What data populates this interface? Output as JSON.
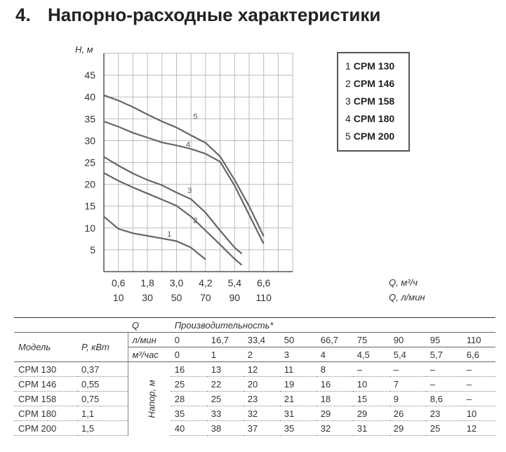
{
  "heading": {
    "number": "4.",
    "title": "Напорно-расходные характеристики"
  },
  "chart_data": {
    "type": "line",
    "ylabel": "Н, м",
    "xlabel": "Q, м³/ч",
    "xlabel2": "Q, л/мин",
    "yticks": [
      "5",
      "10",
      "15",
      "20",
      "25",
      "30",
      "35",
      "40",
      "45"
    ],
    "xticks_m3h": [
      "0,6",
      "1,8",
      "3,0",
      "4,2",
      "5,4",
      "6,6"
    ],
    "xticks_lmin": [
      "10",
      "30",
      "50",
      "70",
      "90",
      "110"
    ],
    "xlim_lmin": [
      0,
      130
    ],
    "ylim": [
      0,
      50
    ],
    "grid": true,
    "legend_position": "top-right",
    "legend": [
      {
        "num": "1",
        "name": "CPM 130"
      },
      {
        "num": "2",
        "name": "CPM 146"
      },
      {
        "num": "3",
        "name": "CPM 158"
      },
      {
        "num": "4",
        "name": "CPM 180"
      },
      {
        "num": "5",
        "name": "CPM 200"
      }
    ],
    "series": [
      {
        "label": "1",
        "x": [
          0,
          10,
          20,
          30,
          40,
          50,
          60,
          70
        ],
        "y": [
          12.6,
          9.8,
          8.8,
          8.2,
          7.6,
          7.0,
          5.5,
          2.8
        ],
        "label_at": [
          45,
          8
        ]
      },
      {
        "label": "2",
        "x": [
          0,
          10,
          20,
          30,
          40,
          50,
          60,
          70,
          80,
          90,
          95
        ],
        "y": [
          22.6,
          20.8,
          19.3,
          17.9,
          16.5,
          15.1,
          12.6,
          9.4,
          6.2,
          2.9,
          1.5
        ],
        "label_at": [
          63,
          11.2
        ]
      },
      {
        "label": "3",
        "x": [
          0,
          10,
          20,
          30,
          40,
          50,
          60,
          70,
          80,
          90,
          95
        ],
        "y": [
          26.3,
          24.3,
          22.5,
          21.0,
          19.8,
          18.1,
          16.6,
          13.5,
          9.4,
          5.5,
          4.1
        ],
        "label_at": [
          59,
          18
        ]
      },
      {
        "label": "4",
        "x": [
          0,
          10,
          20,
          30,
          40,
          50,
          60,
          70,
          80,
          90,
          100,
          110
        ],
        "y": [
          34.4,
          33.2,
          31.8,
          30.7,
          29.6,
          28.9,
          28.1,
          27.0,
          25.2,
          19.7,
          13.0,
          6.4
        ],
        "label_at": [
          58,
          28.5
        ]
      },
      {
        "label": "5",
        "x": [
          0,
          10,
          20,
          30,
          40,
          50,
          60,
          70,
          80,
          90,
          100,
          110
        ],
        "y": [
          40.4,
          39.2,
          37.7,
          36.0,
          34.4,
          33.0,
          31.2,
          29.5,
          26.4,
          21.0,
          15.0,
          8.1
        ],
        "label_at": [
          63,
          35
        ]
      }
    ]
  },
  "table": {
    "q_label": "Q",
    "perf_label": "Производительность*",
    "model_label": "Модель",
    "power_label": "P, кВт",
    "lmin_unit": "л/мин",
    "m3h_unit": "м³/час",
    "head_label": "Напор, м",
    "lmin": [
      "0",
      "16,7",
      "33,4",
      "50",
      "66,7",
      "75",
      "90",
      "95",
      "110"
    ],
    "m3h": [
      "0",
      "1",
      "2",
      "3",
      "4",
      "4,5",
      "5,4",
      "5,7",
      "6,6"
    ],
    "rows": [
      {
        "model": "CPM 130",
        "power": "0,37",
        "values": [
          "16",
          "13",
          "12",
          "11",
          "8",
          "–",
          "–",
          "–",
          "–"
        ]
      },
      {
        "model": "CPM 146",
        "power": "0,55",
        "values": [
          "25",
          "22",
          "20",
          "19",
          "16",
          "10",
          "7",
          "–",
          "–"
        ]
      },
      {
        "model": "CPM 158",
        "power": "0,75",
        "values": [
          "28",
          "25",
          "23",
          "21",
          "18",
          "15",
          "9",
          "8,6",
          "–"
        ]
      },
      {
        "model": "CPM 180",
        "power": "1,1",
        "values": [
          "35",
          "33",
          "32",
          "31",
          "29",
          "29",
          "26",
          "23",
          "10"
        ]
      },
      {
        "model": "CPM 200",
        "power": "1,5",
        "values": [
          "40",
          "38",
          "37",
          "35",
          "32",
          "31",
          "29",
          "25",
          "12"
        ]
      }
    ]
  }
}
